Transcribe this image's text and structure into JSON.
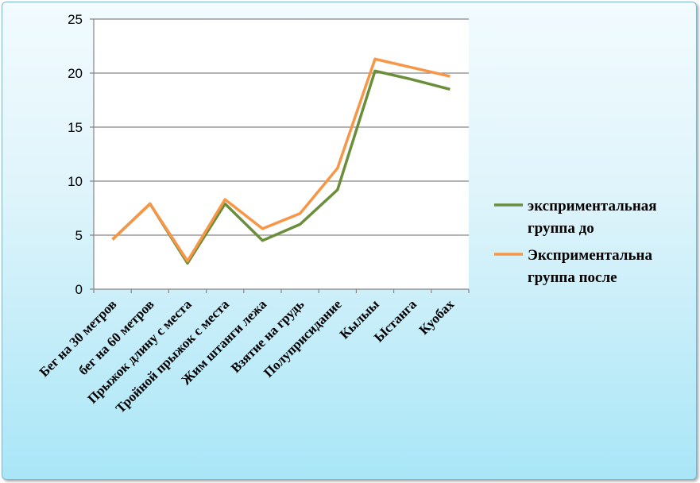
{
  "chart_data": {
    "type": "line",
    "categories": [
      "Бег на 30 метров",
      "бег на 60 метров",
      "Прыжок длину с места",
      "Тройной прыжок с места",
      "Жим штанги лежа",
      "Взятие на грудь",
      "Полуприсидание",
      "Кылыы",
      "Ыстанга",
      "Куобах"
    ],
    "series": [
      {
        "name": "эксприментальная группа до",
        "color": "#6b8e3a",
        "values": [
          4.6,
          7.9,
          2.4,
          7.9,
          4.5,
          6.0,
          9.2,
          20.2,
          19.4,
          18.5
        ]
      },
      {
        "name": "Эксприментальна группа после",
        "color": "#f79646",
        "values": [
          4.6,
          7.9,
          2.6,
          8.3,
          5.6,
          7.0,
          11.2,
          21.3,
          20.5,
          19.7
        ]
      }
    ],
    "ylim": [
      0,
      25
    ],
    "yticks": [
      0,
      5,
      10,
      15,
      20,
      25
    ],
    "grid": true,
    "legend": "right"
  }
}
